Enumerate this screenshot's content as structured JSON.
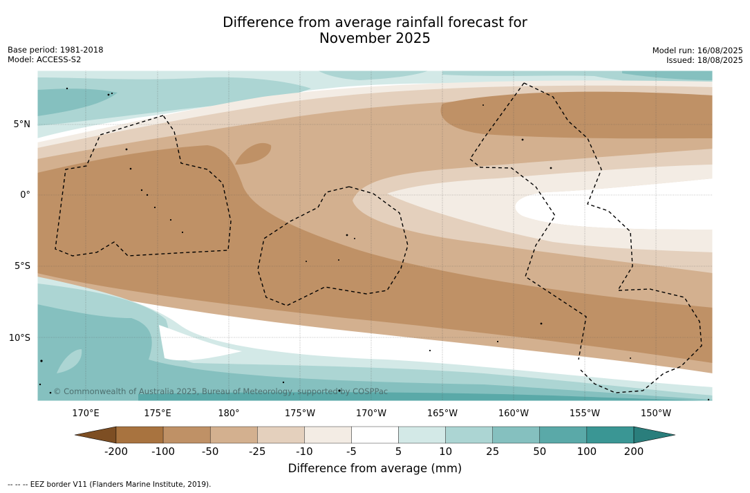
{
  "header": {
    "title_line1": "Difference from average rainfall forecast for",
    "title_line2": "November 2025",
    "base_period": "Base period: 1981-2018",
    "model": "Model: ACCESS-S2",
    "model_run": "Model run: 16/08/2025",
    "issued": "Issued: 18/08/2025"
  },
  "map": {
    "lat_labels": [
      "5°N",
      "0°",
      "5°S",
      "10°S"
    ],
    "lon_labels": [
      "170°E",
      "175°E",
      "180°",
      "175°W",
      "170°W",
      "165°W",
      "160°W",
      "155°W",
      "150°W"
    ],
    "copyright": "© Commonwealth of Australia 2025, Bureau of Meteorology, supported by COSPPac"
  },
  "colorbar": {
    "ticks": [
      "-200",
      "-100",
      "-50",
      "-25",
      "-10",
      "-5",
      "5",
      "10",
      "25",
      "50",
      "100",
      "200"
    ],
    "colors": [
      "#7d4e23",
      "#a8733f",
      "#bf9166",
      "#d3b08f",
      "#e4d0bd",
      "#f3ece4",
      "#ffffff",
      "#d3e9e7",
      "#acd5d3",
      "#85c0bf",
      "#5aa9a8",
      "#3a9694",
      "#2a7e7c"
    ],
    "label": "Difference from average (mm)"
  },
  "footnote": "--  --  -- EEZ border V11 (Flanders Marine Institute, 2019)."
}
